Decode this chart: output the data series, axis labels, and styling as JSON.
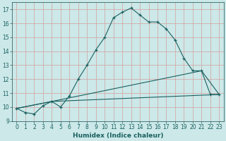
{
  "xlabel": "Humidex (Indice chaleur)",
  "bg_color": "#cce8e8",
  "grid_color": "#d4a0a0",
  "line_color": "#1a6060",
  "spine_color": "#336666",
  "xlim": [
    -0.5,
    23.5
  ],
  "ylim": [
    9,
    17.5
  ],
  "yticks": [
    9,
    10,
    11,
    12,
    13,
    14,
    15,
    16,
    17
  ],
  "xticks": [
    0,
    1,
    2,
    3,
    4,
    5,
    6,
    7,
    8,
    9,
    10,
    11,
    12,
    13,
    14,
    15,
    16,
    17,
    18,
    19,
    20,
    21,
    22,
    23
  ],
  "line1_x": [
    0,
    1,
    2,
    3,
    4,
    5,
    6,
    7,
    8,
    9,
    10,
    11,
    12,
    13,
    14,
    15,
    16,
    17,
    18,
    19,
    20,
    21,
    22,
    23
  ],
  "line1_y": [
    9.9,
    9.6,
    9.5,
    10.1,
    10.4,
    10.0,
    10.8,
    12.0,
    13.0,
    14.1,
    15.0,
    16.4,
    16.8,
    17.1,
    16.6,
    16.1,
    16.1,
    15.6,
    14.8,
    13.5,
    12.6,
    12.6,
    10.9,
    10.9
  ],
  "line2_x": [
    0,
    4,
    23
  ],
  "line2_y": [
    9.9,
    10.4,
    10.9
  ],
  "line3_x": [
    0,
    4,
    21,
    23
  ],
  "line3_y": [
    9.9,
    10.4,
    12.6,
    10.9
  ],
  "xlabel_fontsize": 6.5,
  "tick_labelsize": 5.5,
  "linewidth": 0.8,
  "markersize": 3.5,
  "markeredgewidth": 0.9
}
